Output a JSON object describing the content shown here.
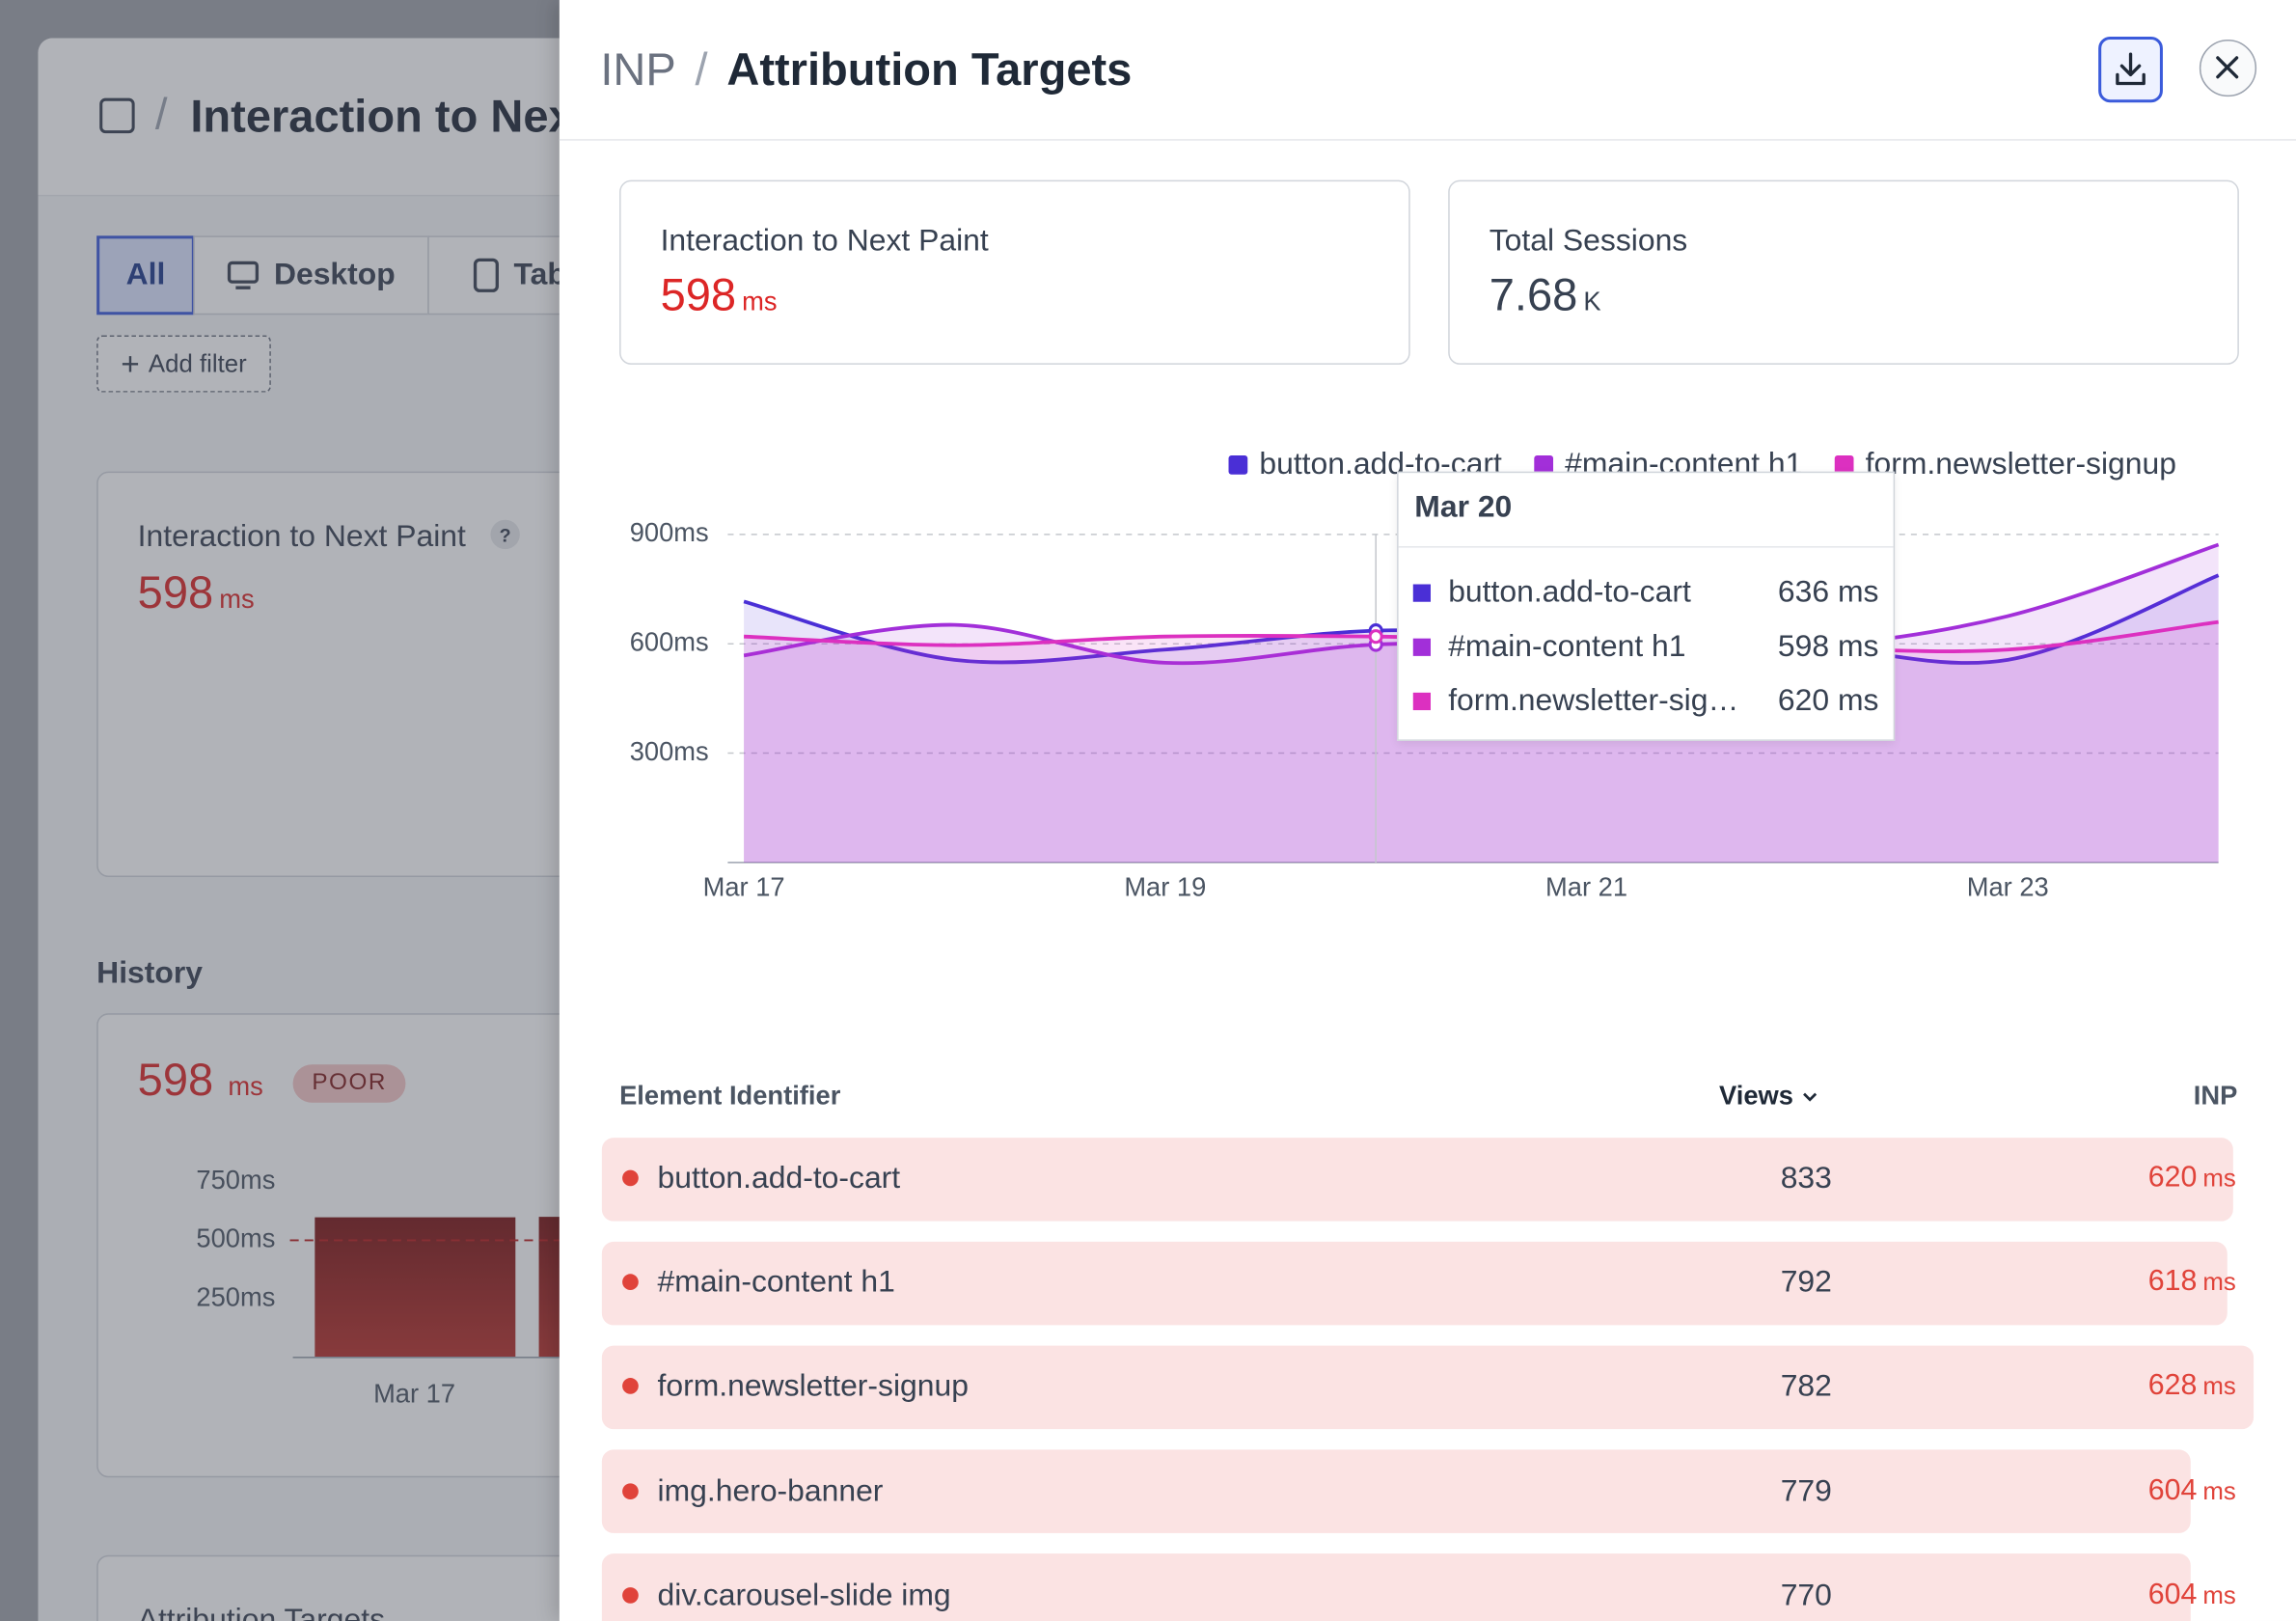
{
  "background": {
    "breadcrumb_title": "Interaction to Next Paint",
    "tabs": [
      "All",
      "Desktop",
      "Tablet"
    ],
    "add_filter": "Add filter",
    "metric_card": {
      "title": "Interaction to Next Paint",
      "help": "?",
      "value": 598,
      "unit": "ms"
    },
    "history": {
      "heading": "History",
      "value": 598,
      "unit": "ms",
      "status": "POOR",
      "chart": {
        "type": "bar",
        "categories": [
          "Mar 17",
          null
        ],
        "values": [
          598,
          600
        ],
        "color": "#9b1c1c",
        "ylim": [
          0,
          800
        ],
        "yticks": [
          {
            "value": 750,
            "label": "750ms"
          },
          {
            "value": 500,
            "label": "500ms"
          },
          {
            "value": 250,
            "label": "250ms"
          }
        ],
        "threshold": 500
      }
    },
    "section_title": "Attribution Targets"
  },
  "panel": {
    "breadcrumb": [
      "INP",
      "Attribution Targets"
    ],
    "stats": [
      {
        "label": "Interaction to Next Paint",
        "value": 598,
        "unit": "ms"
      },
      {
        "label": "Total Sessions",
        "value": 7.68,
        "unit": "K"
      }
    ]
  },
  "chart_data": {
    "type": "line",
    "area": true,
    "categories": [
      "Mar 17",
      null,
      "Mar 19",
      null,
      "Mar 21",
      null,
      "Mar 23",
      null
    ],
    "ylim": [
      0,
      900
    ],
    "yticks": [
      {
        "value": 900,
        "label": "900ms"
      },
      {
        "value": 600,
        "label": "600ms"
      },
      {
        "value": 300,
        "label": "300ms"
      }
    ],
    "grid": true,
    "series": [
      {
        "name": "button.add-to-cart",
        "color": "#4a2fd6",
        "values": [
          716,
          556,
          584,
          636,
          620,
          600,
          556,
          788
        ]
      },
      {
        "name": "#main-content h1",
        "color": "#a22fd9",
        "values": [
          568,
          652,
          548,
          598,
          600,
          590,
          676,
          872
        ]
      },
      {
        "name": "form.newsletter-signup",
        "color": "#dc30c0",
        "values": [
          620,
          596,
          620,
          620,
          610,
          590,
          584,
          660
        ]
      }
    ],
    "tooltip": {
      "title": "Mar 20",
      "index": 3,
      "values": [
        636,
        598,
        620
      ],
      "value_labels": [
        "636 ms",
        "598 ms",
        "620 ms"
      ]
    }
  },
  "table": {
    "headers": [
      "Element Identifier",
      "Views",
      "INP"
    ],
    "inp_unit": "ms",
    "rows": [
      {
        "element": "button.add-to-cart",
        "views": 833,
        "inp": 620
      },
      {
        "element": "#main-content h1",
        "views": 792,
        "inp": 618
      },
      {
        "element": "form.newsletter-signup",
        "views": 782,
        "inp": 628
      },
      {
        "element": "img.hero-banner",
        "views": 779,
        "inp": 604
      },
      {
        "element": "div.carousel-slide img",
        "views": 770,
        "inp": 604
      }
    ]
  }
}
